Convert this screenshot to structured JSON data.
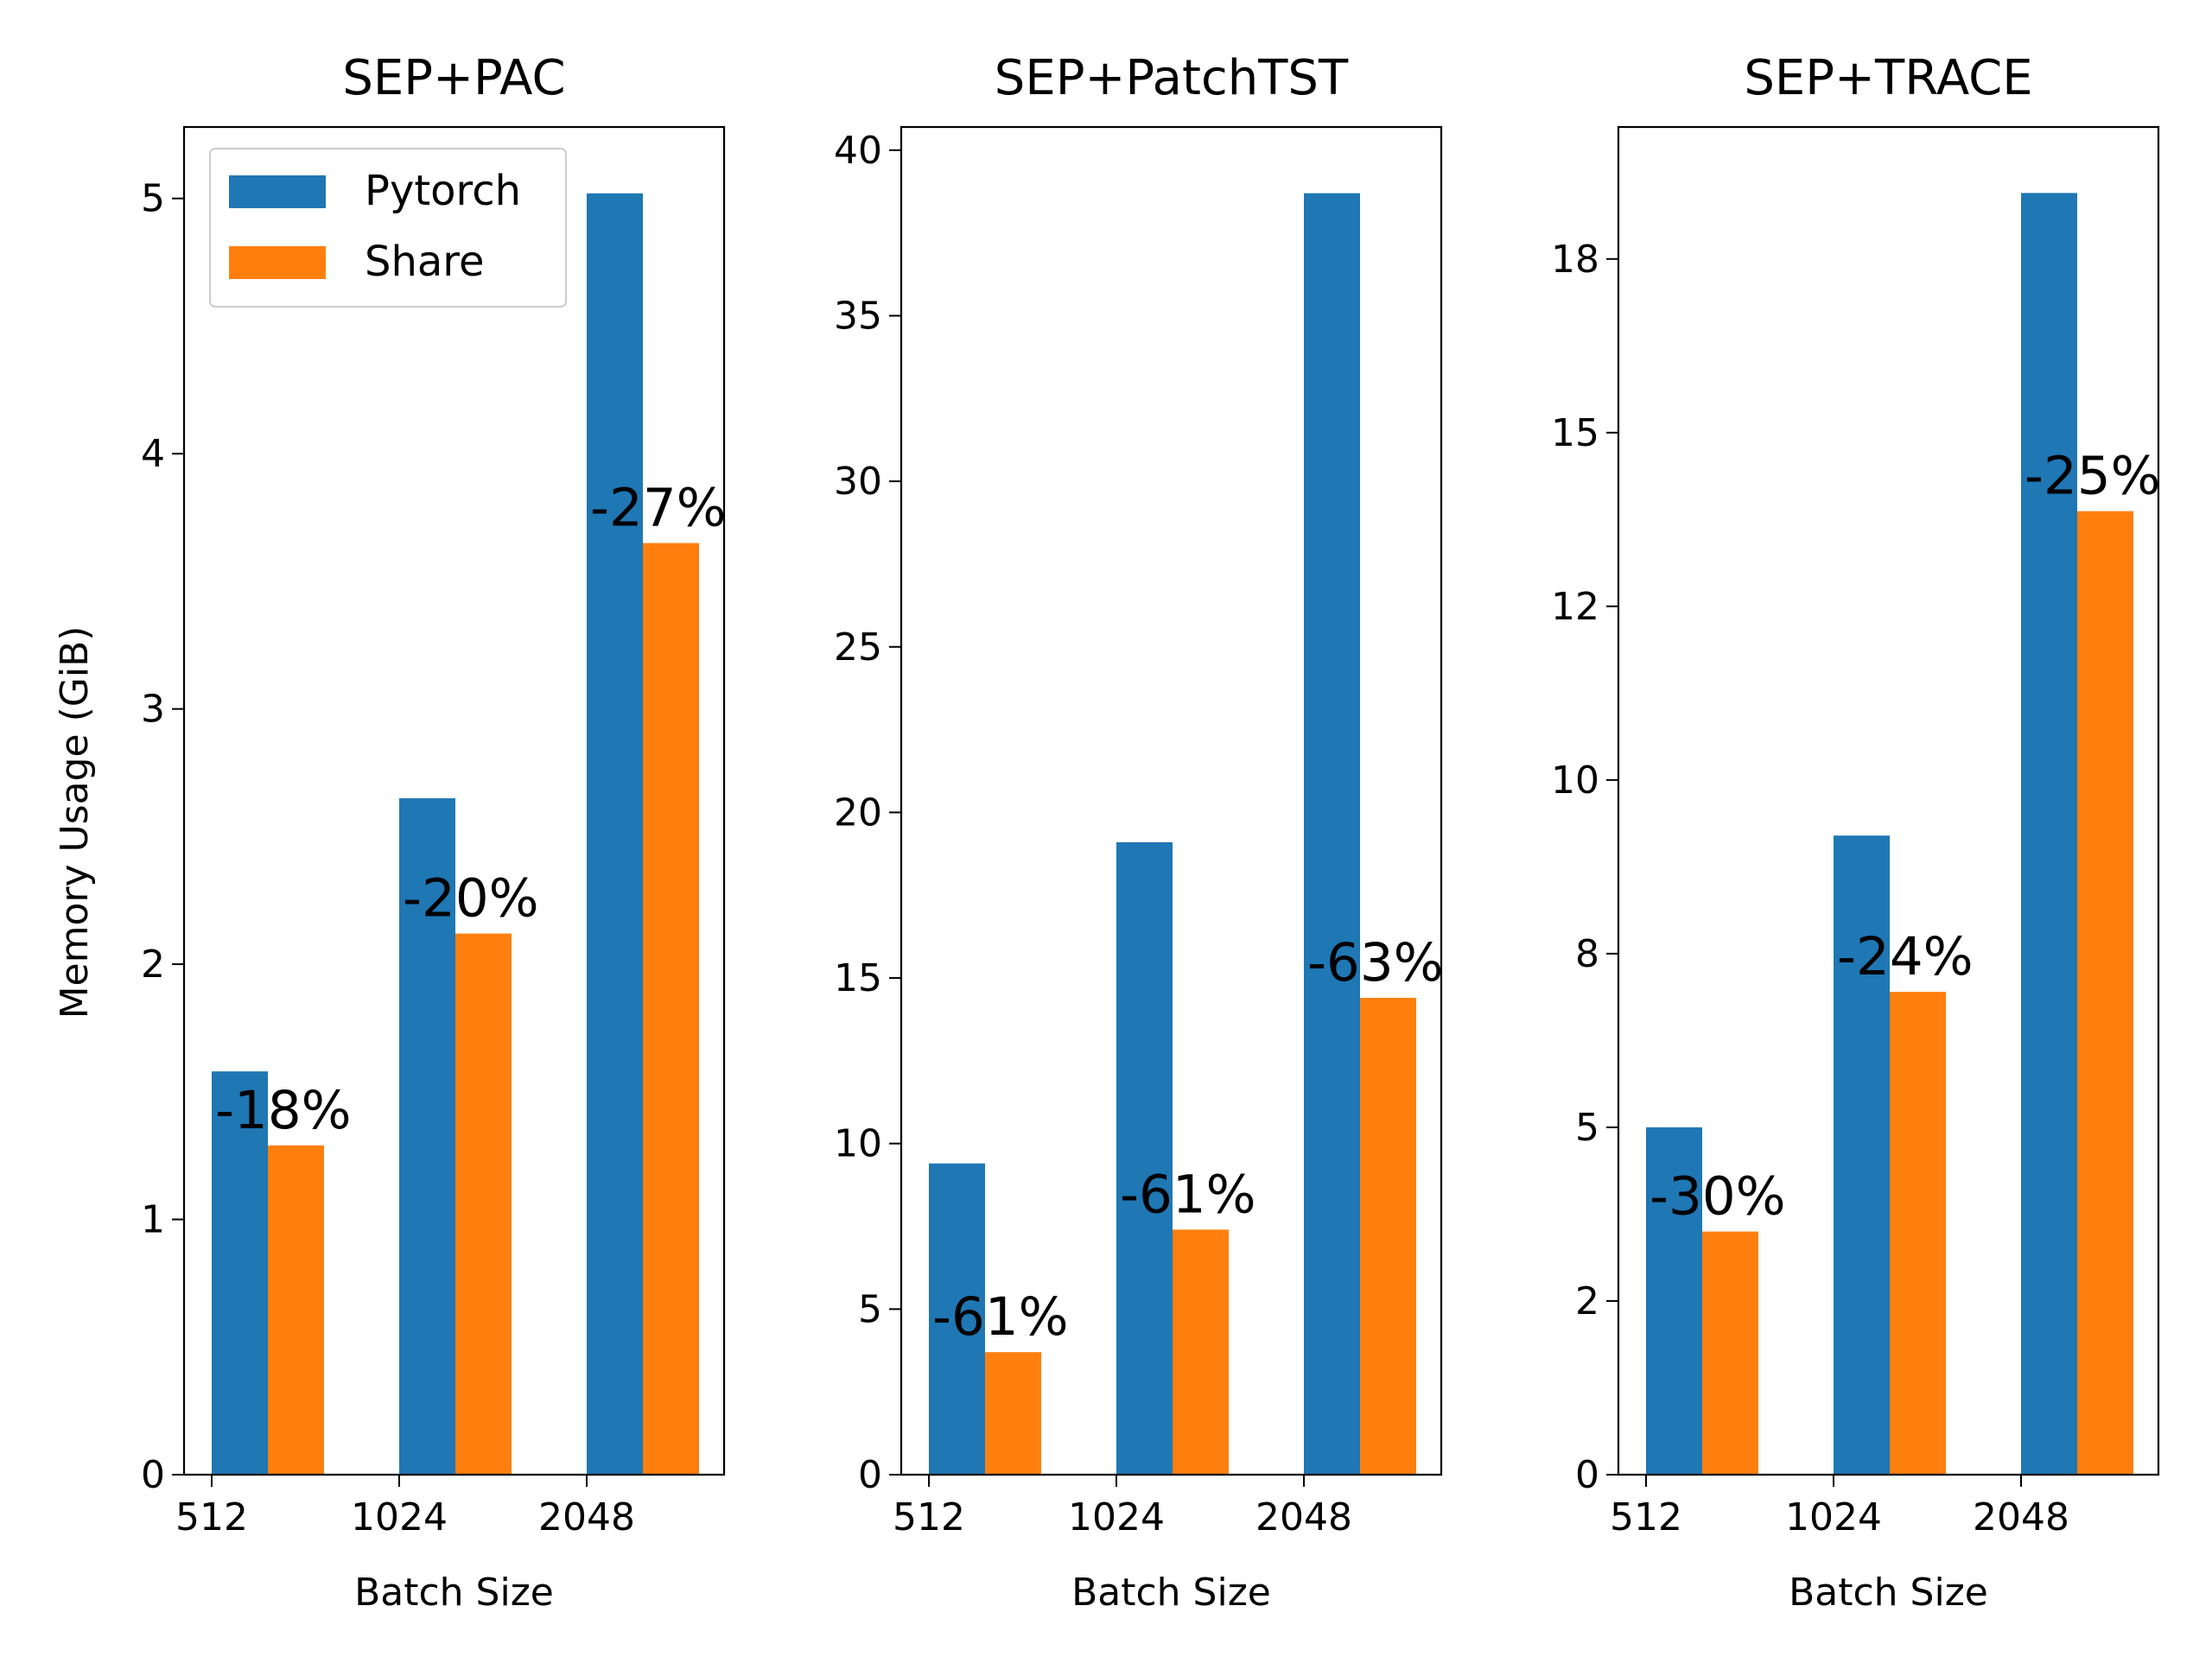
{
  "figure": {
    "ylabel": "Memory Usage (GiB)",
    "xlabel": "Batch Size"
  },
  "colors": {
    "Pytorch": "#1f77b4",
    "Share": "#ff7f0e"
  },
  "legend": {
    "placement": "top-left",
    "entries": [
      "Pytorch",
      "Share"
    ]
  },
  "chart_data": [
    {
      "type": "bar",
      "title": "SEP+PAC",
      "xlabel": "Batch Size",
      "ylabel": "Memory Usage (GiB)",
      "categories": [
        "512",
        "1024",
        "2048"
      ],
      "series": [
        {
          "name": "Pytorch",
          "values": [
            1.58,
            2.65,
            5.02
          ]
        },
        {
          "name": "Share",
          "values": [
            1.29,
            2.12,
            3.65
          ]
        }
      ],
      "annotations": [
        "-18%",
        "-20%",
        "-27%"
      ],
      "ylim": [
        0,
        5.28
      ],
      "yticks": [
        0,
        1,
        2,
        3,
        4,
        5
      ],
      "ytick_labels": [
        "0",
        "1",
        "2",
        "3",
        "4",
        "5"
      ],
      "legend": true
    },
    {
      "type": "bar",
      "title": "SEP+PatchTST",
      "xlabel": "Batch Size",
      "ylabel": "",
      "categories": [
        "512",
        "1024",
        "2048"
      ],
      "series": [
        {
          "name": "Pytorch",
          "values": [
            9.4,
            19.1,
            38.7
          ]
        },
        {
          "name": "Share",
          "values": [
            3.7,
            7.4,
            14.4
          ]
        }
      ],
      "annotations": [
        "-61%",
        "-61%",
        "-63%"
      ],
      "ylim": [
        0,
        40.7
      ],
      "yticks": [
        0,
        5,
        10,
        15,
        20,
        25,
        30,
        35,
        40
      ],
      "ytick_labels": [
        "0",
        "5",
        "10",
        "15",
        "20",
        "25",
        "30",
        "35",
        "40"
      ],
      "legend": false
    },
    {
      "type": "bar",
      "title": "SEP+TRACE",
      "xlabel": "Batch Size",
      "ylabel": "",
      "categories": [
        "512",
        "1024",
        "2048"
      ],
      "series": [
        {
          "name": "Pytorch",
          "values": [
            5.0,
            9.2,
            18.45
          ]
        },
        {
          "name": "Share",
          "values": [
            3.5,
            6.95,
            13.87
          ]
        }
      ],
      "annotations": [
        "-30%",
        "-24%",
        "-25%"
      ],
      "ylim": [
        0,
        19.4
      ],
      "yticks": [
        0,
        2.5,
        5,
        7.5,
        10,
        12.5,
        15,
        17.5
      ],
      "ytick_labels": [
        "0",
        "2",
        "5",
        "8",
        "10",
        "12",
        "15",
        "18"
      ],
      "legend": false
    }
  ]
}
